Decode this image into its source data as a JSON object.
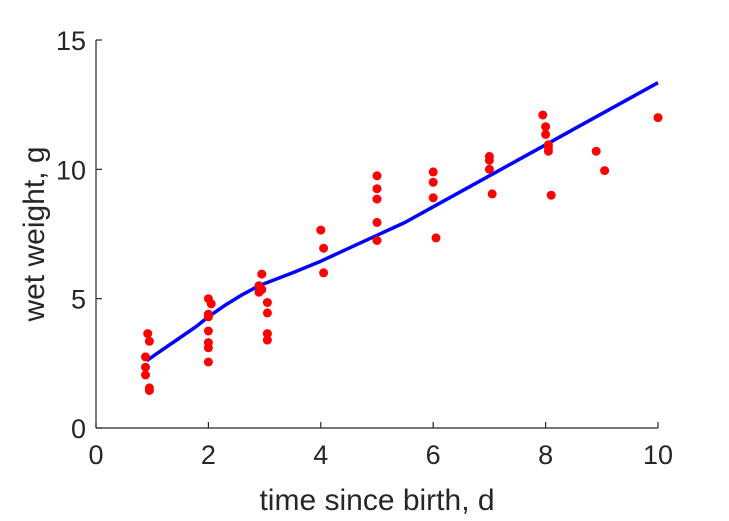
{
  "chart_data": {
    "type": "scatter",
    "title": "",
    "xlabel": "time since birth, d",
    "ylabel": "wet weight, g",
    "xlim": [
      0,
      10
    ],
    "ylim": [
      0,
      15
    ],
    "xticks": [
      0,
      2,
      4,
      6,
      8,
      10
    ],
    "yticks": [
      0,
      5,
      10,
      15
    ],
    "grid": false,
    "legend": "none",
    "series": [
      {
        "kind": "points",
        "color": "#ff0000",
        "points": [
          [
            0.92,
            3.65
          ],
          [
            0.95,
            3.35
          ],
          [
            0.88,
            2.75
          ],
          [
            0.88,
            2.35
          ],
          [
            0.88,
            2.05
          ],
          [
            0.95,
            1.55
          ],
          [
            0.95,
            1.45
          ],
          [
            2.0,
            5.0
          ],
          [
            2.05,
            4.8
          ],
          [
            2.0,
            4.4
          ],
          [
            2.0,
            4.3
          ],
          [
            2.0,
            3.75
          ],
          [
            2.0,
            3.3
          ],
          [
            2.0,
            3.1
          ],
          [
            2.0,
            2.55
          ],
          [
            2.95,
            5.95
          ],
          [
            2.9,
            5.5
          ],
          [
            2.95,
            5.35
          ],
          [
            2.9,
            5.25
          ],
          [
            3.05,
            4.85
          ],
          [
            3.05,
            4.45
          ],
          [
            3.05,
            3.65
          ],
          [
            3.05,
            3.4
          ],
          [
            4.0,
            7.65
          ],
          [
            4.05,
            6.95
          ],
          [
            4.05,
            6.0
          ],
          [
            5.0,
            9.75
          ],
          [
            5.0,
            9.25
          ],
          [
            5.0,
            8.85
          ],
          [
            5.0,
            7.95
          ],
          [
            5.0,
            7.25
          ],
          [
            6.0,
            9.9
          ],
          [
            6.0,
            9.5
          ],
          [
            6.0,
            8.9
          ],
          [
            6.05,
            7.35
          ],
          [
            7.0,
            10.5
          ],
          [
            7.0,
            10.35
          ],
          [
            7.0,
            10.0
          ],
          [
            7.05,
            9.05
          ],
          [
            7.95,
            12.1
          ],
          [
            8.0,
            11.65
          ],
          [
            8.0,
            11.35
          ],
          [
            8.05,
            10.95
          ],
          [
            8.05,
            10.85
          ],
          [
            8.05,
            10.7
          ],
          [
            8.1,
            9.0
          ],
          [
            8.9,
            10.7
          ],
          [
            9.05,
            9.95
          ],
          [
            10.0,
            12.0
          ]
        ]
      },
      {
        "kind": "curve",
        "color": "#0000ff",
        "points": [
          [
            0.9,
            2.6
          ],
          [
            1.2,
            3.05
          ],
          [
            1.5,
            3.5
          ],
          [
            1.8,
            3.95
          ],
          [
            2.0,
            4.3
          ],
          [
            2.3,
            4.75
          ],
          [
            2.6,
            5.15
          ],
          [
            2.9,
            5.5
          ],
          [
            3.2,
            5.75
          ],
          [
            3.5,
            6.0
          ],
          [
            4.0,
            6.45
          ],
          [
            4.5,
            6.95
          ],
          [
            5.0,
            7.45
          ],
          [
            5.5,
            7.95
          ],
          [
            6.0,
            8.55
          ],
          [
            6.5,
            9.15
          ],
          [
            7.0,
            9.75
          ],
          [
            7.5,
            10.35
          ],
          [
            8.0,
            10.95
          ],
          [
            8.5,
            11.55
          ],
          [
            9.0,
            12.15
          ],
          [
            9.5,
            12.75
          ],
          [
            10.0,
            13.35
          ]
        ]
      }
    ]
  }
}
